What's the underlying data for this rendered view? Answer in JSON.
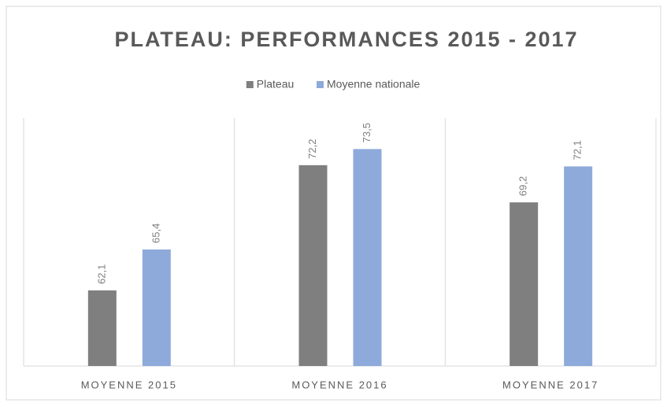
{
  "chart_data": {
    "type": "bar",
    "title": "PLATEAU: PERFORMANCES 2015 - 2017",
    "categories": [
      "MOYENNE 2015",
      "MOYENNE 2016",
      "MOYENNE 2017"
    ],
    "series": [
      {
        "name": "Plateau",
        "color": "#7f7f7f",
        "values": [
          62.1,
          72.2,
          69.2
        ],
        "value_labels": [
          "62,1",
          "72,2",
          "69,2"
        ]
      },
      {
        "name": "Moyenne nationale",
        "color": "#8eaadb",
        "values": [
          65.4,
          73.5,
          72.1
        ],
        "value_labels": [
          "65,4",
          "73,5",
          "72,1"
        ]
      }
    ],
    "ylim": [
      56,
      76
    ],
    "legend": "top"
  }
}
